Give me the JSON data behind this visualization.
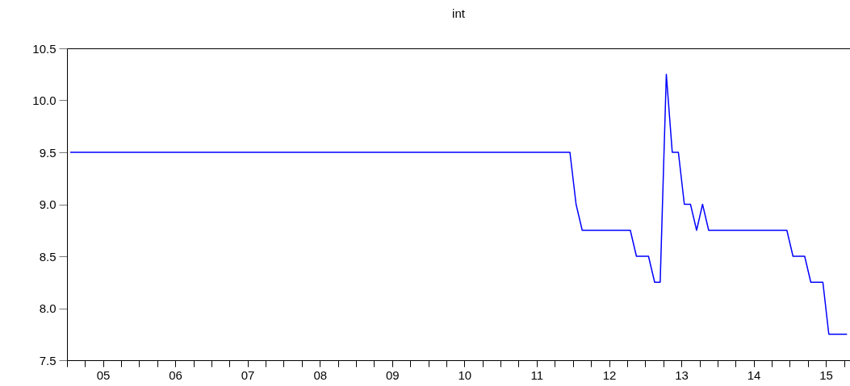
{
  "chart_data": {
    "type": "line",
    "title": "int",
    "x": [
      "2005-01",
      "2011-12",
      "2012-01",
      "2012-02",
      "2012-10",
      "2012-11",
      "2013-01",
      "2013-02",
      "2013-03",
      "2013-04",
      "2013-05",
      "2013-06",
      "2013-07",
      "2013-08",
      "2013-09",
      "2013-10",
      "2013-11",
      "2014-12",
      "2015-01",
      "2015-03",
      "2015-04",
      "2015-06",
      "2015-07",
      "2015-10"
    ],
    "series": [
      {
        "color": "#0000ff",
        "values": [
          9.5,
          9.5,
          9.0,
          8.75,
          8.75,
          8.5,
          8.5,
          8.25,
          8.25,
          10.25,
          9.5,
          9.5,
          9.0,
          9.0,
          8.75,
          9.0,
          8.75,
          8.75,
          8.5,
          8.5,
          8.25,
          8.25,
          7.75,
          7.75
        ]
      }
    ],
    "xlim": [
      "2004-12-16",
      "2015-10-16"
    ],
    "xticks": [
      {
        "value": "2004-12-16",
        "label": null
      },
      {
        "value": "2005-03-16",
        "label": null
      },
      {
        "value": "2005-06-16",
        "label": "05"
      },
      {
        "value": "2005-09-16",
        "label": null
      },
      {
        "value": "2005-12-16",
        "label": null
      },
      {
        "value": "2006-03-16",
        "label": null
      },
      {
        "value": "2006-06-16",
        "label": "06"
      },
      {
        "value": "2006-09-16",
        "label": null
      },
      {
        "value": "2006-12-16",
        "label": null
      },
      {
        "value": "2007-03-16",
        "label": null
      },
      {
        "value": "2007-06-16",
        "label": "07"
      },
      {
        "value": "2007-09-16",
        "label": null
      },
      {
        "value": "2007-12-16",
        "label": null
      },
      {
        "value": "2008-03-16",
        "label": null
      },
      {
        "value": "2008-06-16",
        "label": "08"
      },
      {
        "value": "2008-09-16",
        "label": null
      },
      {
        "value": "2008-12-16",
        "label": null
      },
      {
        "value": "2009-03-16",
        "label": null
      },
      {
        "value": "2009-06-16",
        "label": "09"
      },
      {
        "value": "2009-09-16",
        "label": null
      },
      {
        "value": "2009-12-16",
        "label": null
      },
      {
        "value": "2010-03-16",
        "label": null
      },
      {
        "value": "2010-06-16",
        "label": "10"
      },
      {
        "value": "2010-09-16",
        "label": null
      },
      {
        "value": "2010-12-16",
        "label": null
      },
      {
        "value": "2011-03-16",
        "label": null
      },
      {
        "value": "2011-06-16",
        "label": "11"
      },
      {
        "value": "2011-09-16",
        "label": null
      },
      {
        "value": "2011-12-16",
        "label": null
      },
      {
        "value": "2012-03-16",
        "label": null
      },
      {
        "value": "2012-06-16",
        "label": "12"
      },
      {
        "value": "2012-09-16",
        "label": null
      },
      {
        "value": "2012-12-16",
        "label": null
      },
      {
        "value": "2013-03-16",
        "label": null
      },
      {
        "value": "2013-06-16",
        "label": "13"
      },
      {
        "value": "2013-09-16",
        "label": null
      },
      {
        "value": "2013-12-16",
        "label": null
      },
      {
        "value": "2014-03-16",
        "label": null
      },
      {
        "value": "2014-06-16",
        "label": "14"
      },
      {
        "value": "2014-09-16",
        "label": null
      },
      {
        "value": "2014-12-16",
        "label": null
      },
      {
        "value": "2015-03-16",
        "label": null
      },
      {
        "value": "2015-06-16",
        "label": "15"
      },
      {
        "value": "2015-09-16",
        "label": null
      }
    ],
    "ylim": [
      7.5,
      10.5
    ],
    "yticks": [
      7.5,
      {
        "value": 8,
        "label": "8.0"
      },
      8.5,
      {
        "value": 9,
        "label": "9.0"
      },
      9.5,
      {
        "value": 10,
        "label": "10.0"
      },
      10.5
    ]
  }
}
